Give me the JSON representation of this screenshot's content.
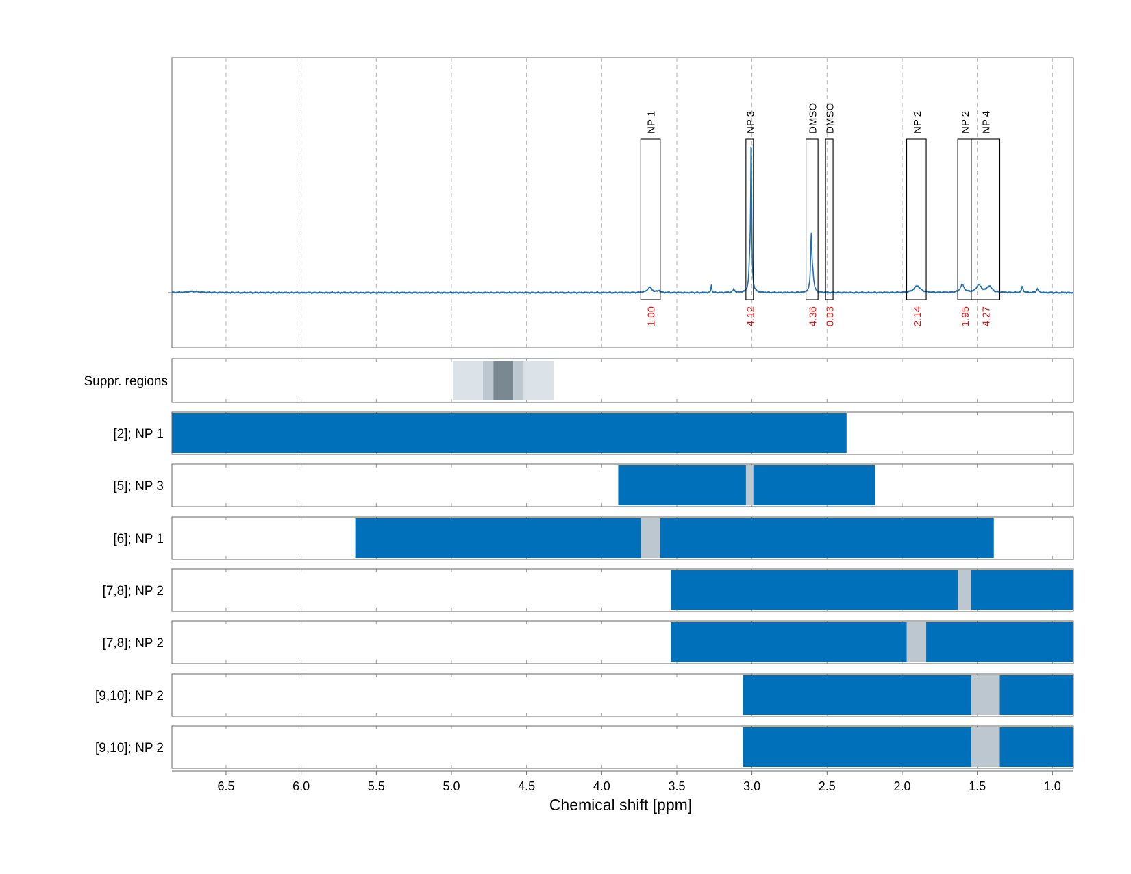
{
  "chart_data": {
    "type": "spectrum",
    "xlabel": "Chemical shift [ppm]",
    "xlim": [
      6.86,
      0.86
    ],
    "x_ticks": [
      {
        "value": 6.5,
        "label": "6.5"
      },
      {
        "value": 6.0,
        "label": "6.0"
      },
      {
        "value": 5.5,
        "label": "5.5"
      },
      {
        "value": 5.0,
        "label": "5.0"
      },
      {
        "value": 4.5,
        "label": "4.5"
      },
      {
        "value": 4.0,
        "label": "4.0"
      },
      {
        "value": 3.5,
        "label": "3.5"
      },
      {
        "value": 3.0,
        "label": "3.0"
      },
      {
        "value": 2.5,
        "label": "2.5"
      },
      {
        "value": 2.0,
        "label": "2.0"
      },
      {
        "value": 1.5,
        "label": "1.5"
      },
      {
        "value": 1.0,
        "label": "1.0"
      }
    ],
    "grid": true,
    "spectrum": {
      "color": "#1f6fb5",
      "peaks": [
        {
          "ppm": 3.68,
          "height": 0.022,
          "width": 0.018
        },
        {
          "ppm": 3.62,
          "height": 0.008,
          "width": 0.01
        },
        {
          "ppm": 3.27,
          "height": 0.035,
          "width": 0.003
        },
        {
          "ppm": 3.12,
          "height": 0.013,
          "width": 0.008
        },
        {
          "ppm": 3.005,
          "height": 0.61,
          "width": 0.004
        },
        {
          "ppm": 3.015,
          "height": 0.09,
          "width": 0.006
        },
        {
          "ppm": 2.605,
          "height": 0.22,
          "width": 0.005
        },
        {
          "ppm": 2.595,
          "height": 0.06,
          "width": 0.008
        },
        {
          "ppm": 1.9,
          "height": 0.028,
          "width": 0.025
        },
        {
          "ppm": 1.6,
          "height": 0.032,
          "width": 0.015
        },
        {
          "ppm": 1.49,
          "height": 0.03,
          "width": 0.02
        },
        {
          "ppm": 1.42,
          "height": 0.026,
          "width": 0.02
        },
        {
          "ppm": 1.2,
          "height": 0.025,
          "width": 0.006
        },
        {
          "ppm": 1.1,
          "height": 0.015,
          "width": 0.008
        },
        {
          "ppm": 6.72,
          "height": 0.005,
          "width": 0.05
        }
      ]
    },
    "integration_regions": [
      {
        "label": "NP 1",
        "from": 3.74,
        "to": 3.61,
        "value": "1.00"
      },
      {
        "label": "NP 3",
        "from": 3.04,
        "to": 2.99,
        "value": "4.12"
      },
      {
        "label": "DMSO",
        "from": 2.64,
        "to": 2.56,
        "value": "4.36"
      },
      {
        "label": "DMSO",
        "from": 2.51,
        "to": 2.46,
        "value": "0.03"
      },
      {
        "label": "NP 2",
        "from": 1.97,
        "to": 1.84,
        "value": "2.14"
      },
      {
        "label": "NP 2",
        "from": 1.63,
        "to": 1.54,
        "value": "1.95"
      },
      {
        "label": "NP 4",
        "from": 1.54,
        "to": 1.35,
        "value": "4.27"
      }
    ],
    "integral_value_color": "#ee1111",
    "suppression_regions": {
      "label": "Suppr. regions",
      "bands": [
        {
          "from": 4.99,
          "to": 4.32,
          "shade": "#dbe2e8"
        },
        {
          "from": 4.79,
          "to": 4.52,
          "shade": "#bcc7d0"
        },
        {
          "from": 4.72,
          "to": 4.59,
          "shade": "#7a8892"
        }
      ]
    },
    "signal_rows": [
      {
        "label": "[2]; NP 1",
        "from": 6.86,
        "to": 2.37,
        "excluded": []
      },
      {
        "label": "[5]; NP 3",
        "from": 3.89,
        "to": 2.18,
        "excluded": [
          {
            "from": 3.04,
            "to": 2.99
          }
        ]
      },
      {
        "label": "[6]; NP 1",
        "from": 5.64,
        "to": 1.39,
        "excluded": [
          {
            "from": 3.74,
            "to": 3.61
          }
        ]
      },
      {
        "label": "[7,8]; NP 2",
        "from": 3.54,
        "to": 0.86,
        "excluded": [
          {
            "from": 1.63,
            "to": 1.54
          }
        ]
      },
      {
        "label": "[7,8]; NP 2",
        "from": 3.54,
        "to": 0.86,
        "excluded": [
          {
            "from": 1.97,
            "to": 1.84
          }
        ]
      },
      {
        "label": "[9,10]; NP 2",
        "from": 3.06,
        "to": 0.86,
        "excluded": [
          {
            "from": 1.54,
            "to": 1.35
          }
        ]
      },
      {
        "label": "[9,10]; NP 2",
        "from": 3.06,
        "to": 0.86,
        "excluded": [
          {
            "from": 1.54,
            "to": 1.35
          }
        ]
      }
    ],
    "signal_color": "#0070bb",
    "excluded_color": "#bcc7d0"
  }
}
